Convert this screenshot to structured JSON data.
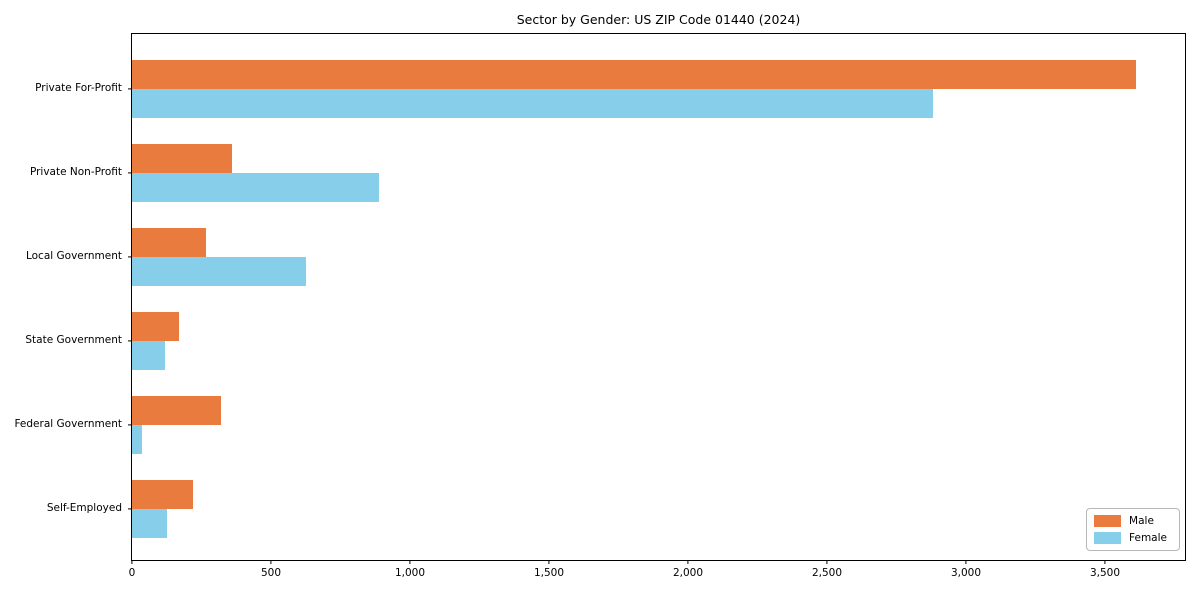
{
  "chart_data": {
    "type": "bar",
    "orientation": "horizontal",
    "title": "Sector by Gender: US ZIP Code 01440 (2024)",
    "categories": [
      "Private For-Profit",
      "Private Non-Profit",
      "Local Government",
      "State Government",
      "Federal Government",
      "Self-Employed"
    ],
    "series": [
      {
        "name": "Male",
        "color": "#E87B3D",
        "values": [
          3610,
          360,
          265,
          170,
          320,
          220
        ]
      },
      {
        "name": "Female",
        "color": "#87CEEB",
        "values": [
          2880,
          890,
          625,
          120,
          35,
          125
        ]
      }
    ],
    "xlim": [
      0,
      3795
    ],
    "xticks": [
      0,
      500,
      1000,
      1500,
      2000,
      2500,
      3000,
      3500
    ],
    "xtick_labels": [
      "0",
      "500",
      "1,000",
      "1,500",
      "2,000",
      "2,500",
      "3,000",
      "3,500"
    ],
    "xlabel": "",
    "ylabel": "",
    "grid": false,
    "legend_position": "lower right",
    "background_color": "#ffffff",
    "spine_color": "#000000"
  }
}
